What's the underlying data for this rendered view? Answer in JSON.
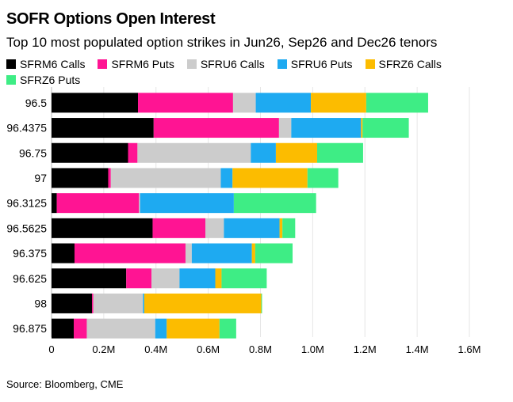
{
  "chart_data": {
    "type": "bar",
    "orientation": "horizontal",
    "stacked": true,
    "title": "SOFR Options Open Interest",
    "subtitle": "Top 10 most populated option strikes in Jun26, Sep26 and Dec26 tenors",
    "source": "Source: Bloomberg, CME",
    "categories": [
      "96.5",
      "96.4375",
      "96.75",
      "97",
      "96.3125",
      "96.5625",
      "96.375",
      "96.625",
      "98",
      "96.875"
    ],
    "series": [
      {
        "name": "SFRM6 Calls",
        "color": "#000000",
        "values": [
          331000,
          391000,
          293000,
          217000,
          20000,
          387000,
          88000,
          286000,
          155000,
          85000
        ]
      },
      {
        "name": "SFRM6 Puts",
        "color": "#ff1493",
        "values": [
          364000,
          480000,
          36000,
          10000,
          315000,
          202000,
          425000,
          97000,
          5000,
          50000
        ]
      },
      {
        "name": "SFRU6 Calls",
        "color": "#cccccc",
        "values": [
          87000,
          47000,
          434000,
          421000,
          4000,
          71000,
          24000,
          107000,
          190000,
          262000
        ]
      },
      {
        "name": "SFRU6 Puts",
        "color": "#1eaaf1",
        "values": [
          211000,
          267000,
          96000,
          45000,
          359000,
          213000,
          230000,
          137000,
          5000,
          44000
        ]
      },
      {
        "name": "SFRZ6 Calls",
        "color": "#fcbc00",
        "values": [
          212000,
          6000,
          158000,
          287000,
          0,
          11000,
          13000,
          24000,
          448000,
          202000
        ]
      },
      {
        "name": "SFRZ6 Puts",
        "color": "#3eed85",
        "values": [
          237000,
          177000,
          176000,
          118000,
          315000,
          49000,
          143000,
          173000,
          3000,
          64000
        ]
      }
    ],
    "xlim": [
      0,
      1600000
    ],
    "x_ticks": [
      0,
      200000,
      400000,
      600000,
      800000,
      1000000,
      1200000,
      1400000,
      1600000
    ],
    "x_tick_labels": [
      "0",
      "0.2M",
      "0.4M",
      "0.6M",
      "0.8M",
      "1.0M",
      "1.2M",
      "1.4M",
      "1.6M"
    ],
    "xlabel": "",
    "ylabel": "",
    "grid": true,
    "legend_position": "top-left"
  }
}
